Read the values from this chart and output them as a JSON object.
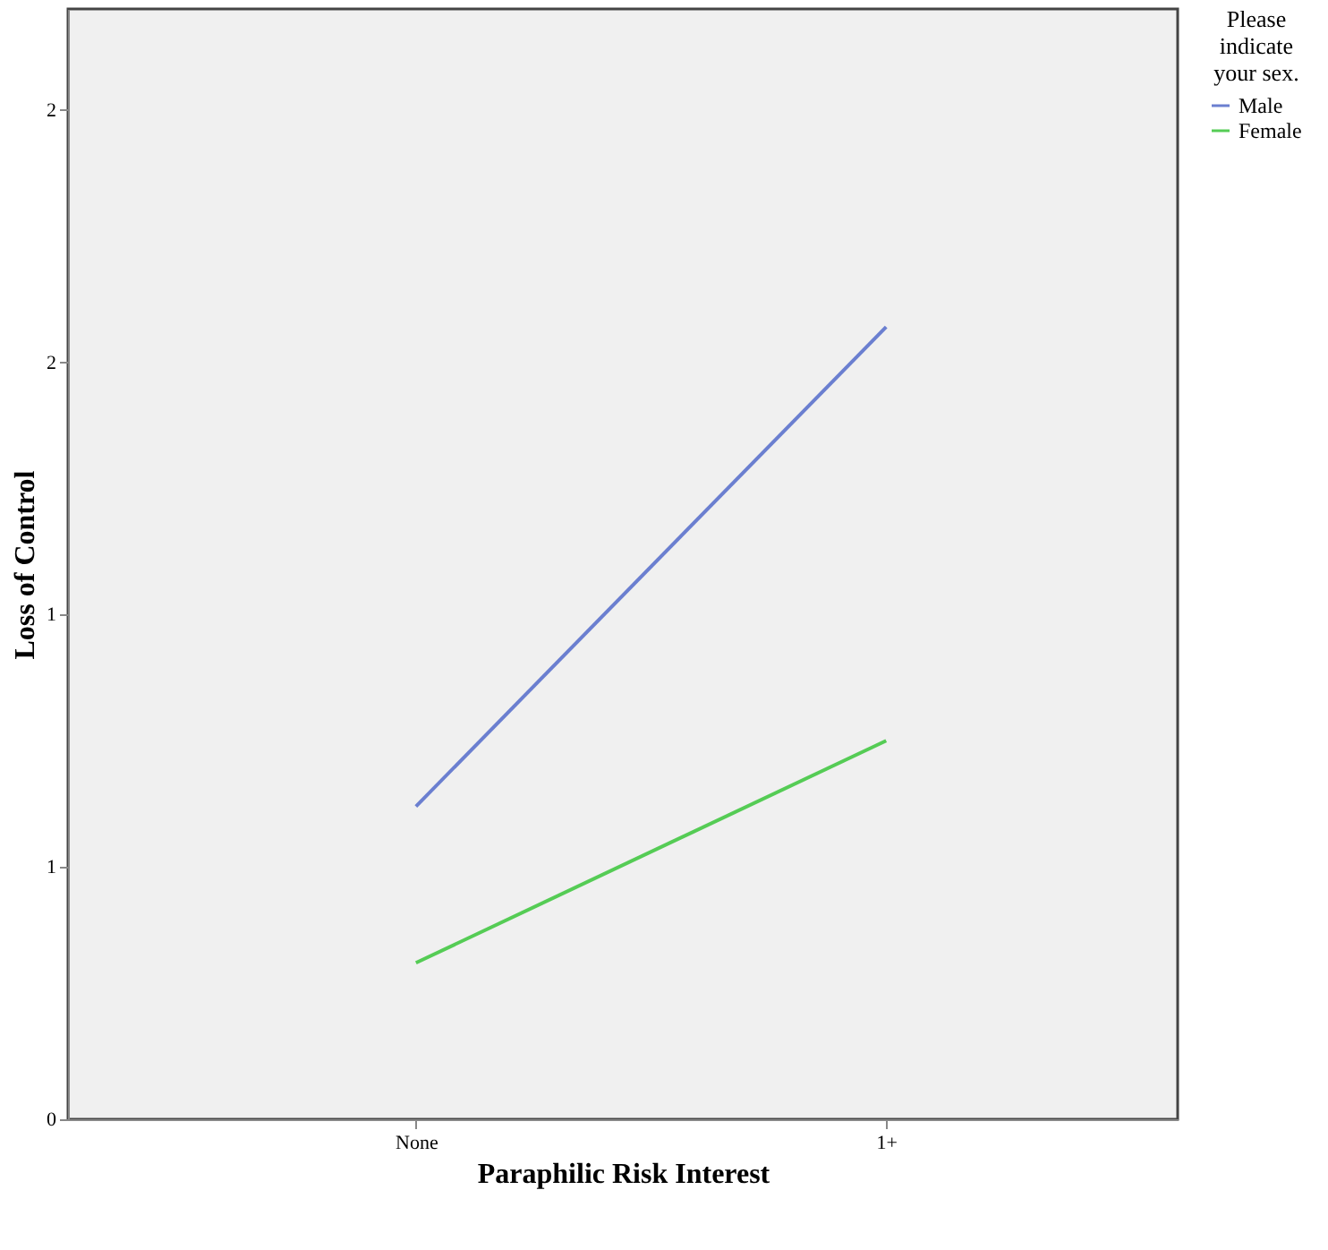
{
  "chart_data": {
    "type": "line",
    "xlabel": "Paraphilic Risk Interest",
    "ylabel": "Loss of Control",
    "categories": [
      "None",
      "1+"
    ],
    "series": [
      {
        "name": "Male",
        "color": "#6b7fd0",
        "values": [
          0.62,
          1.57
        ]
      },
      {
        "name": "Female",
        "color": "#55cc55",
        "values": [
          0.31,
          0.75
        ]
      }
    ],
    "ylim": [
      0,
      2.2
    ],
    "yticks": [
      0,
      {
        "value": 0.5,
        "label": "1"
      },
      {
        "value": 1,
        "label": "1"
      },
      {
        "value": 1.5,
        "label": "2"
      },
      {
        "value": 2,
        "label": "2"
      }
    ],
    "legend_title": "Please indicate your sex.",
    "legend": "top right",
    "grid": false,
    "marker": "none",
    "line_style": "solid"
  }
}
